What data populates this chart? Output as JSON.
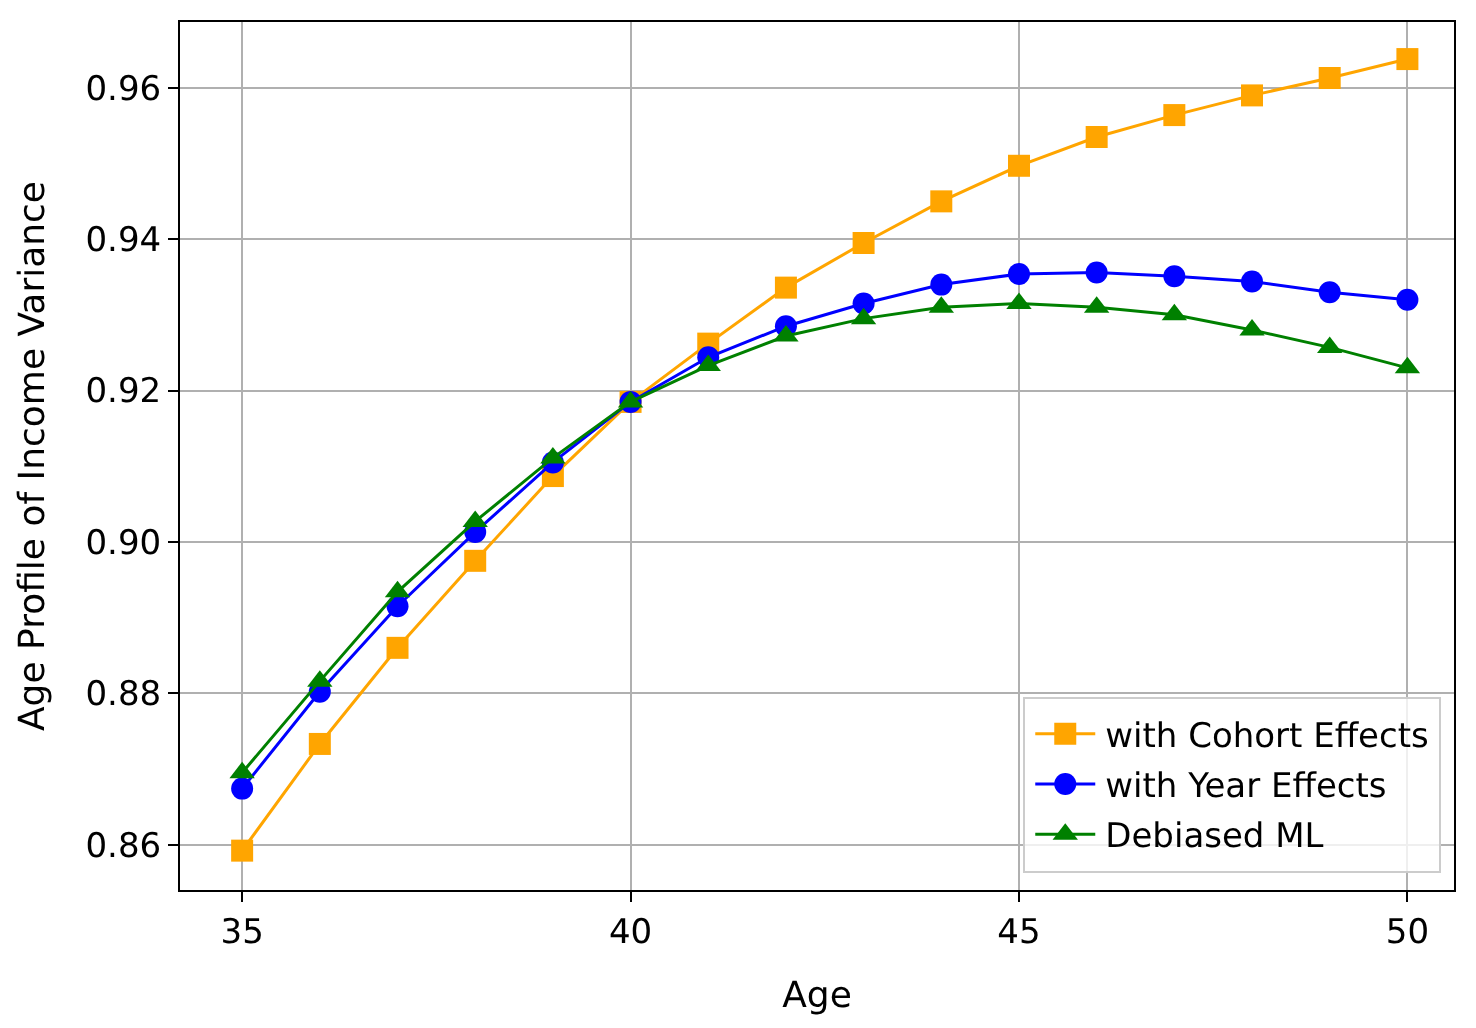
{
  "chart_data": {
    "type": "line",
    "xlabel": "Age",
    "ylabel": "Age Profile of Income Variance",
    "x": [
      35,
      36,
      37,
      38,
      39,
      40,
      41,
      42,
      43,
      44,
      45,
      46,
      47,
      48,
      49,
      50
    ],
    "series": [
      {
        "name": "with Cohort Effects",
        "color": "#ffa500",
        "marker": "square",
        "values": [
          0.8592,
          0.8733,
          0.886,
          0.8975,
          0.9087,
          0.9185,
          0.9262,
          0.9336,
          0.9395,
          0.945,
          0.9497,
          0.9535,
          0.9564,
          0.959,
          0.9613,
          0.9638
        ]
      },
      {
        "name": "with Year Effects",
        "color": "#0000ff",
        "marker": "circle",
        "values": [
          0.8674,
          0.8802,
          0.8915,
          0.9013,
          0.9105,
          0.9185,
          0.9244,
          0.9285,
          0.9315,
          0.934,
          0.9354,
          0.9356,
          0.9351,
          0.9344,
          0.933,
          0.932
        ]
      },
      {
        "name": "Debiased ML",
        "color": "#008000",
        "marker": "triangle",
        "values": [
          0.8695,
          0.8816,
          0.8934,
          0.9027,
          0.9111,
          0.9185,
          0.9233,
          0.9272,
          0.9295,
          0.931,
          0.9315,
          0.931,
          0.93,
          0.928,
          0.9257,
          0.923
        ]
      }
    ],
    "xlim": [
      34.2,
      50.6
    ],
    "ylim": [
      0.854,
      0.9687
    ],
    "xticks": [
      35,
      40,
      45,
      50
    ],
    "yticks": [
      {
        "value": 0.86,
        "label": "0.86"
      },
      {
        "value": 0.88,
        "label": "0.88"
      },
      {
        "value": 0.9,
        "label": "0.90"
      },
      {
        "value": 0.92,
        "label": "0.92"
      },
      {
        "value": 0.94,
        "label": "0.94"
      },
      {
        "value": 0.96,
        "label": "0.96"
      }
    ],
    "grid": true,
    "legend": "bottom right",
    "line_style": "solid"
  }
}
